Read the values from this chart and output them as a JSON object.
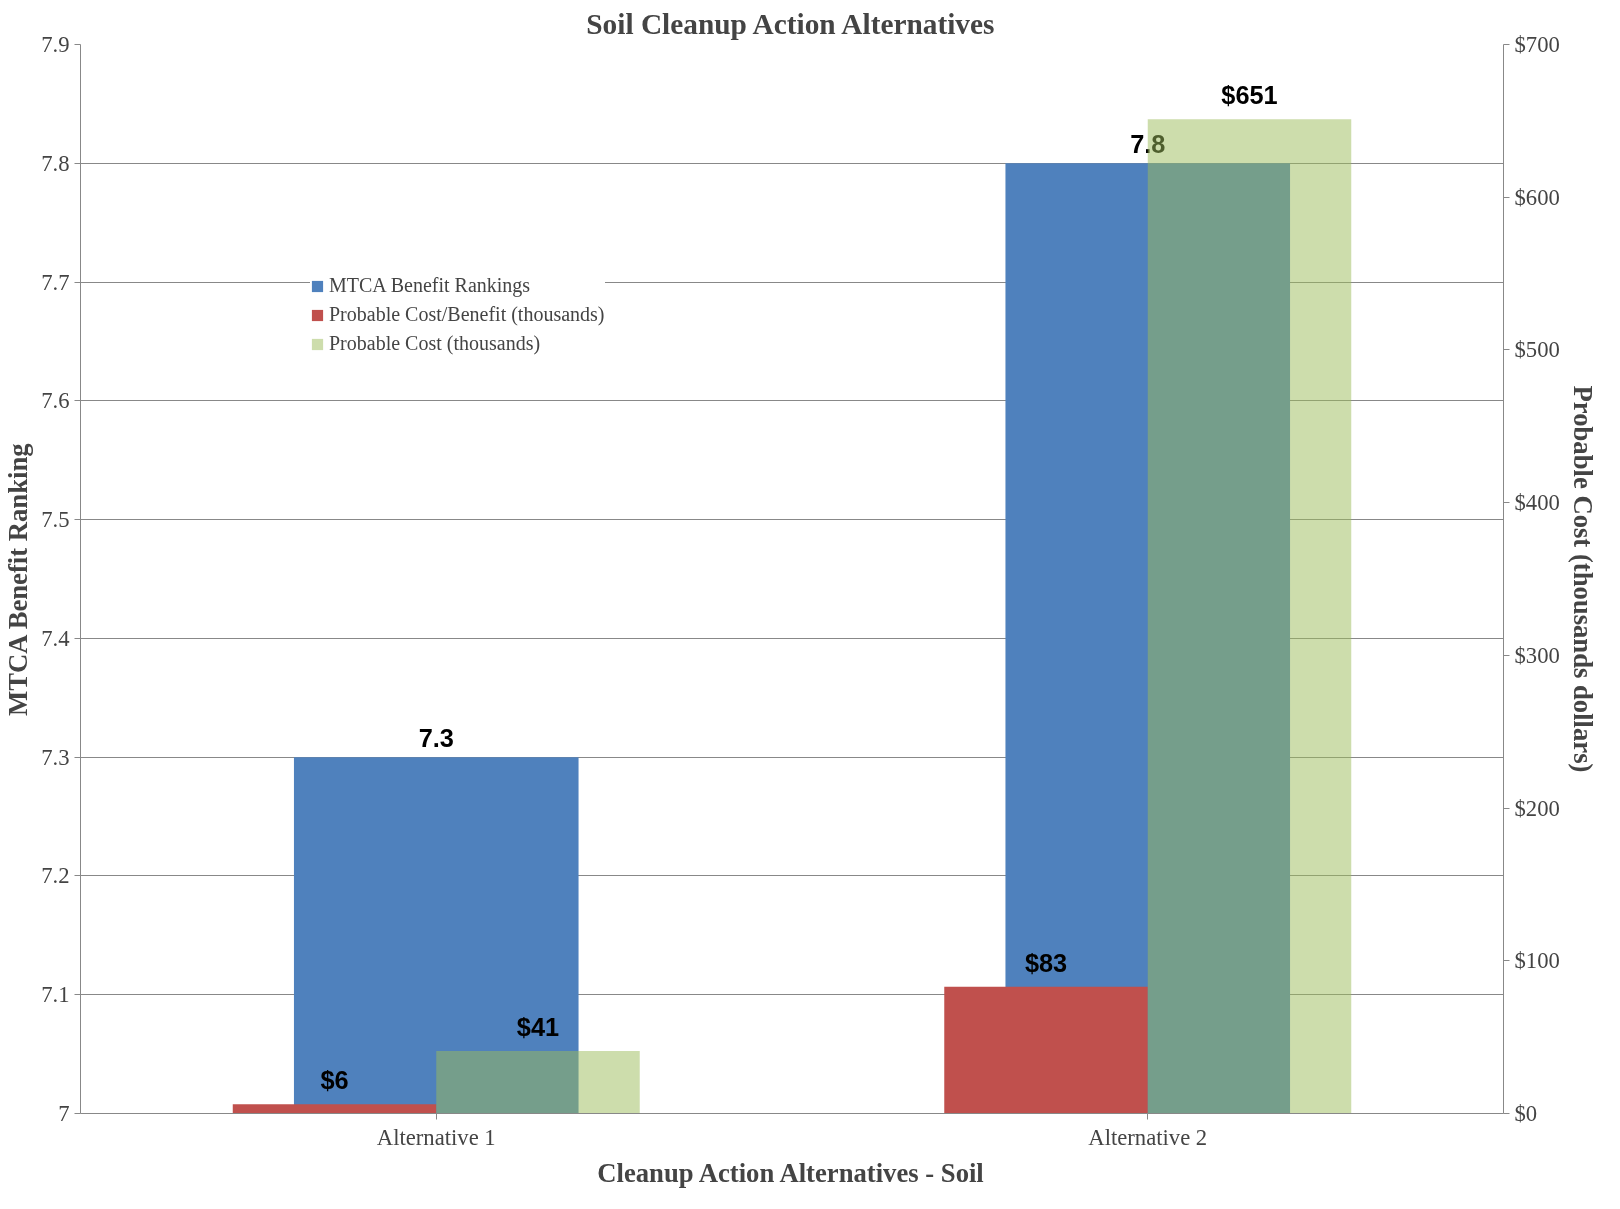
{
  "chart_data": {
    "type": "bar",
    "title": "Soil Cleanup Action Alternatives",
    "xlabel": "Cleanup Action Alternatives - Soil",
    "ylabel": "MTCA Benefit Ranking",
    "y2label": "Probable Cost (thousands dollars)",
    "categories": [
      "Alternative 1",
      "Alternative 2"
    ],
    "series": [
      {
        "name": "MTCA Benefit Rankings",
        "color": "#4f81bd",
        "values": [
          7.3,
          7.8
        ],
        "value_labels": [
          "7.3",
          "7.8"
        ]
      },
      {
        "name": "Probable Cost/Benefit (thousands)",
        "color": "#c0504d",
        "values": [
          6,
          83
        ],
        "axis": "y2",
        "value_labels": [
          "$6",
          "$83"
        ]
      },
      {
        "name": "Probable Cost (thousands)",
        "color": "#9bbb59",
        "values": [
          41,
          651
        ],
        "axis": "y2",
        "value_labels": [
          "$41",
          "$651"
        ]
      }
    ],
    "ylim": [
      7,
      7.9
    ],
    "yticks": [
      7,
      7.1,
      7.2,
      7.3,
      7.4,
      7.5,
      7.6,
      7.7,
      7.8,
      7.9
    ],
    "y2lim": [
      0,
      700
    ],
    "y2ticks": [
      {
        "value": 0,
        "label": "$0"
      },
      {
        "value": 100,
        "label": "$100"
      },
      {
        "value": 200,
        "label": "$200"
      },
      {
        "value": 300,
        "label": "$300"
      },
      {
        "value": 400,
        "label": "$400"
      },
      {
        "value": 500,
        "label": "$500"
      },
      {
        "value": 600,
        "label": "$600"
      },
      {
        "value": 700,
        "label": "$700"
      }
    ],
    "grid": "y",
    "legend": "top left"
  }
}
